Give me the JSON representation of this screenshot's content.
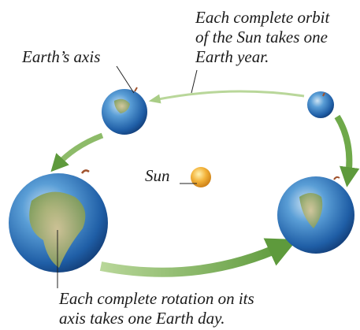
{
  "labels": {
    "orbit": [
      "Each complete orbit",
      "of the Sun takes one",
      "Earth year."
    ],
    "axis": "Earth’s axis",
    "sun": "Sun",
    "rotation": [
      "Each complete rotation on its",
      "axis takes one Earth day."
    ]
  }
}
